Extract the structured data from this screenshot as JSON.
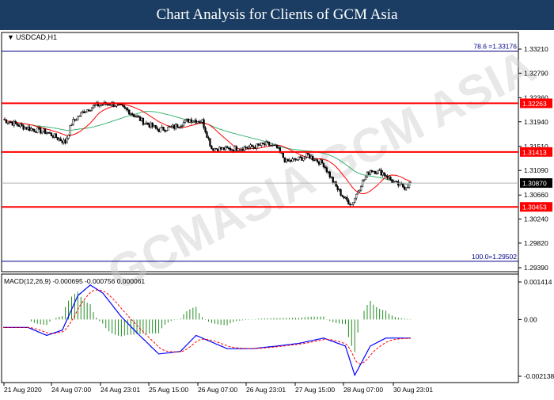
{
  "banner": {
    "title": "Chart Analysis for Clients of GCM Asia"
  },
  "main_chart": {
    "symbol_label": "USDCAD,H1",
    "price_axis": [
      "1.33210",
      "1.32790",
      "1.32360",
      "1.31940",
      "1.31510",
      "1.31090",
      "1.30660",
      "1.30240",
      "1.29820",
      "1.29390"
    ],
    "current_price_tag": "1.30870",
    "levels": [
      {
        "price": 1.32263,
        "tag": "1.32263"
      },
      {
        "price": 1.31413,
        "tag": "1.31413"
      },
      {
        "price": 1.30453,
        "tag": "1.30453"
      }
    ],
    "fib_top": {
      "price": 1.33176,
      "label": "78.6 =1.33176"
    },
    "fib_bottom": {
      "price": 1.29502,
      "label": "100.0=1.29502"
    },
    "watermark": "GCMASIA GCM ASIA",
    "colors": {
      "level": "#ff0000",
      "fib": "#00008b",
      "fast_ma": "#ff0000",
      "slow_ma": "#3cb371",
      "candle": "#000000",
      "tag_fill": "#000000"
    }
  },
  "macd_panel": {
    "label": "MACD(12,26,9) -0.000695 -0.000756 0.000061",
    "axis": [
      "0.001414",
      "0.00",
      "-0.002138"
    ],
    "colors": {
      "histogram": "#228b22",
      "macd_line": "#0000ff",
      "signal_line": "#ff0000"
    }
  },
  "time_axis": [
    "21 Aug 2020",
    "24 Aug 07:00",
    "24 Aug 23:01",
    "25 Aug 15:00",
    "26 Aug 07:00",
    "26 Aug 23:01",
    "27 Aug 15:00",
    "28 Aug 07:00",
    "30 Aug 23:01"
  ]
}
